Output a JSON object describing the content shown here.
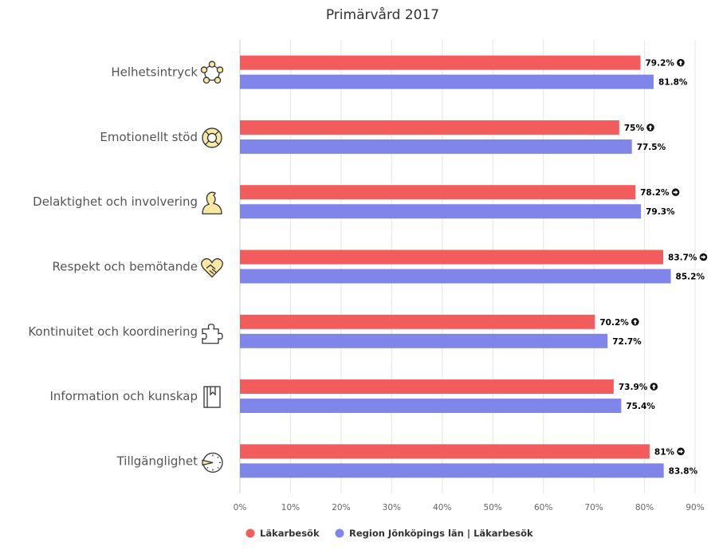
{
  "chart_data": {
    "type": "bar",
    "orientation": "horizontal",
    "title": "Primärvård 2017",
    "xlabel": "",
    "ylabel": "",
    "categories": [
      "Helhetsintryck",
      "Emotionellt stöd",
      "Delaktighet och involvering",
      "Respekt och bemötande",
      "Kontinuitet och koordinering",
      "Information och kunskap",
      "Tillgänglighet"
    ],
    "category_icons": [
      "people-circle-icon",
      "lifebuoy-icon",
      "person-icon",
      "heart-handshake-icon",
      "puzzle-icon",
      "book-icon",
      "clock-icon"
    ],
    "series": [
      {
        "name": "Läkarbesök",
        "color": "#f25c5c",
        "values": [
          79.2,
          75,
          78.2,
          83.7,
          70.2,
          73.9,
          81
        ],
        "labels": [
          "79.2%",
          "75%",
          "78.2%",
          "83.7%",
          "70.2%",
          "73.9%",
          "81%"
        ],
        "trend_icons": [
          "arrow-up-icon",
          "arrow-up-icon",
          "arrow-right-icon",
          "arrow-right-icon",
          "arrow-up-icon",
          "arrow-up-icon",
          "arrow-right-icon"
        ]
      },
      {
        "name": "Region Jönköpings län | Läkarbesök",
        "color": "#8085e9",
        "values": [
          81.8,
          77.5,
          79.3,
          85.2,
          72.7,
          75.4,
          83.8
        ],
        "labels": [
          "81.8%",
          "77.5%",
          "79.3%",
          "85.2%",
          "72.7%",
          "75.4%",
          "83.8%"
        ]
      }
    ],
    "xlim": [
      0,
      90
    ],
    "xticks": [
      0,
      10,
      20,
      30,
      40,
      50,
      60,
      70,
      80,
      90
    ],
    "xtick_labels": [
      "0%",
      "10%",
      "20%",
      "30%",
      "40%",
      "50%",
      "60%",
      "70%",
      "80%",
      "90%"
    ],
    "grid": true,
    "legend": "bottom-center"
  }
}
